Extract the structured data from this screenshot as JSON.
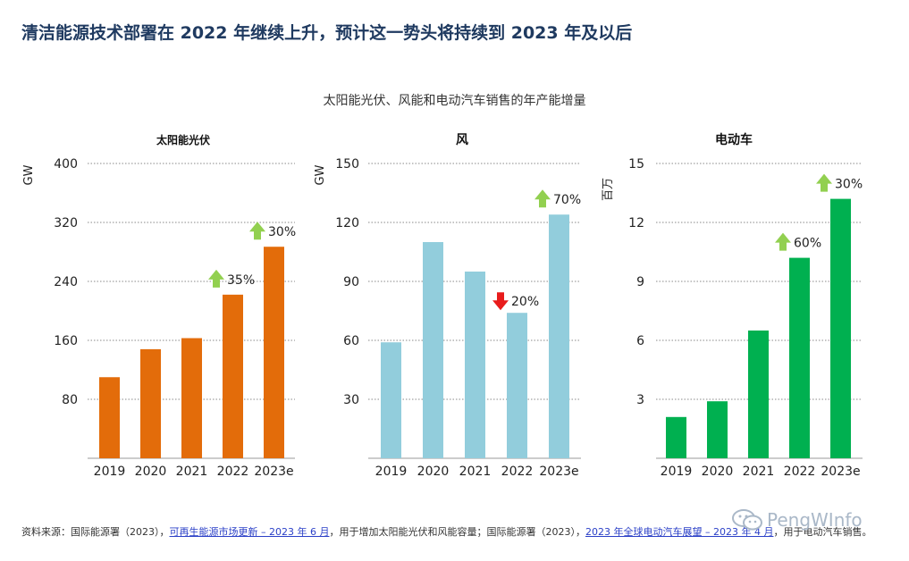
{
  "title": "清洁能源技术部署在 2022 年继续上升，预计这一势头将持续到 2023 年及以后",
  "subtitle": "太阳能光伏、风能和电动汽车销售的年产能增量",
  "colors": {
    "solar": "#e36c0a",
    "wind": "#92cddc",
    "ev": "#00b050",
    "up": "#92d050",
    "down": "#e81c1c",
    "grid": "#888888"
  },
  "chart_data": [
    {
      "type": "bar",
      "title": "太阳能光伏",
      "ylabel": "GW",
      "categories": [
        "2019",
        "2020",
        "2021",
        "2022",
        "2023e"
      ],
      "values": [
        110,
        148,
        163,
        222,
        287
      ],
      "ylim": [
        0,
        400
      ],
      "yticks": [
        "80",
        "160",
        "240",
        "320",
        "400"
      ],
      "annotations": [
        {
          "index": 3,
          "direction": "up",
          "label": "35%"
        },
        {
          "index": 4,
          "direction": "up",
          "label": "30%"
        }
      ]
    },
    {
      "type": "bar",
      "title": "风",
      "ylabel": "GW",
      "categories": [
        "2019",
        "2020",
        "2021",
        "2022",
        "2023e"
      ],
      "values": [
        59,
        110,
        95,
        74,
        124
      ],
      "ylim": [
        0,
        150
      ],
      "yticks": [
        "30",
        "60",
        "90",
        "120",
        "150"
      ],
      "annotations": [
        {
          "index": 3,
          "direction": "down",
          "label": "20%"
        },
        {
          "index": 4,
          "direction": "up",
          "label": "70%"
        }
      ]
    },
    {
      "type": "bar",
      "title": "电动车",
      "ylabel": "百万",
      "categories": [
        "2019",
        "2020",
        "2021",
        "2022",
        "2023e"
      ],
      "values": [
        2.1,
        2.9,
        6.5,
        10.2,
        13.2
      ],
      "ylim": [
        0,
        15
      ],
      "yticks": [
        "3",
        "6",
        "9",
        "12",
        "15"
      ],
      "annotations": [
        {
          "index": 3,
          "direction": "up",
          "label": "60%"
        },
        {
          "index": 4,
          "direction": "up",
          "label": "30%"
        }
      ]
    }
  ],
  "source": {
    "prefix": "资料来源：国际能源署（2023），",
    "link1": "可再生能源市场更新 – 2023 年 6 月",
    "middle": "，用于增加太阳能光伏和风能容量；国际能源署（2023），",
    "link2": "2023 年全球电动汽车展望 – 2023 年 4 月",
    "suffix": "，用于电动汽车销售。"
  },
  "watermark": "PengWInfo"
}
